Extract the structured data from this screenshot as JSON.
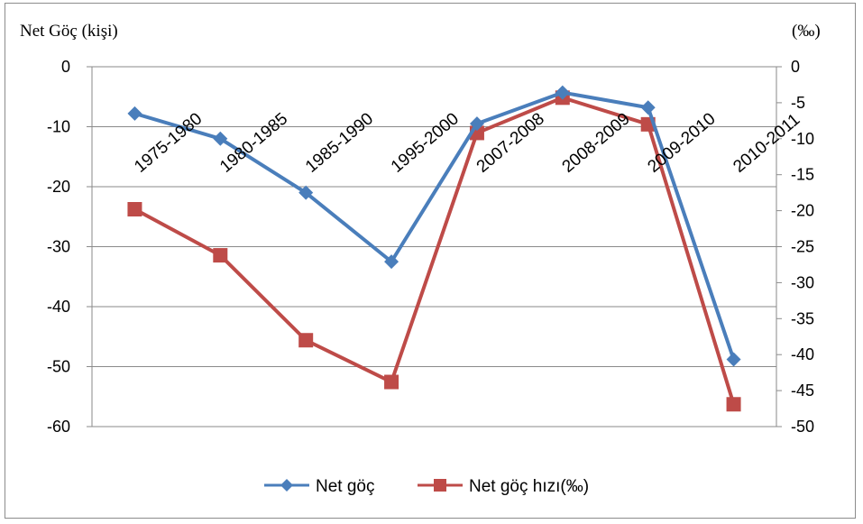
{
  "chart_data": {
    "type": "line",
    "title": "",
    "ylabel_left": "Net Göç (kişi)",
    "ylabel_right": "(‰)",
    "categories": [
      "1975-1980",
      "1980-1985",
      "1985-1990",
      "1995-2000",
      "2007-2008",
      "2008-2009",
      "2009-2010",
      "2010-2011"
    ],
    "y_left": {
      "min": -60,
      "max": 0,
      "step": 10,
      "ticks": [
        "0",
        "-10",
        "-20",
        "-30",
        "-40",
        "-50",
        "-60"
      ]
    },
    "y_right": {
      "min": -50,
      "max": 0,
      "step": 5,
      "ticks": [
        "0",
        "-5",
        "-10",
        "-15",
        "-20",
        "-25",
        "-30",
        "-35",
        "-40",
        "-45",
        "-50"
      ]
    },
    "series": [
      {
        "name": "Net göç",
        "axis": "left",
        "color": "#4a7ebb",
        "marker": "diamond",
        "values": [
          -7.8,
          -12,
          -21,
          -32.5,
          -9.5,
          -4.3,
          -6.8,
          -48.8
        ]
      },
      {
        "name": "Net göç hızı(‰)",
        "axis": "right",
        "color": "#be4b48",
        "marker": "square",
        "values": [
          -19.8,
          -26.2,
          -38,
          -43.8,
          -9.2,
          -4.3,
          -8,
          -46.9
        ]
      }
    ],
    "grid": true,
    "legend": "bottom"
  }
}
